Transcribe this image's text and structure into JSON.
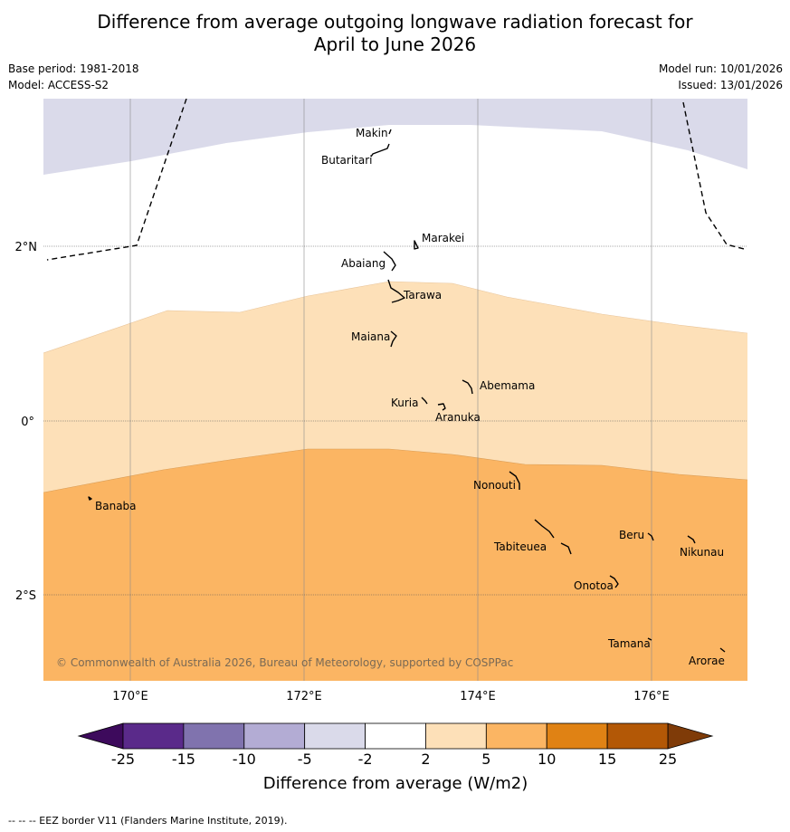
{
  "title_line1": "Difference from average outgoing longwave radiation forecast for",
  "title_line2": "April to June 2026",
  "meta": {
    "base_period": "Base period: 1981-2018",
    "model": "Model: ACCESS-S2",
    "model_run": "Model run: 10/01/2026",
    "issued": "Issued: 13/01/2026"
  },
  "axes": {
    "x_ticks": [
      "170°E",
      "172°E",
      "174°E",
      "176°E"
    ],
    "y_ticks": [
      "2°N",
      "0°",
      "2°S"
    ]
  },
  "places": [
    {
      "name": "Makin"
    },
    {
      "name": "Butaritari"
    },
    {
      "name": "Marakei"
    },
    {
      "name": "Abaiang"
    },
    {
      "name": "Tarawa"
    },
    {
      "name": "Maiana"
    },
    {
      "name": "Abemama"
    },
    {
      "name": "Kuria"
    },
    {
      "name": "Aranuka"
    },
    {
      "name": "Nonouti"
    },
    {
      "name": "Banaba"
    },
    {
      "name": "Beru"
    },
    {
      "name": "Tabiteuea"
    },
    {
      "name": "Nikunau"
    },
    {
      "name": "Onotoa"
    },
    {
      "name": "Tamana"
    },
    {
      "name": "Arorae"
    }
  ],
  "copyright": "© Commonwealth of Australia 2026, Bureau of Meteorology, supported by COSPPac",
  "colorbar": {
    "title": "Difference from average (W/m2)",
    "ticks": [
      "-25",
      "-15",
      "-10",
      "-5",
      "-2",
      "2",
      "5",
      "10",
      "15",
      "25"
    ],
    "colors": [
      "#3d0a5c",
      "#5a2a8a",
      "#8073ae",
      "#b3acd4",
      "#dadaea",
      "#ffffff",
      "#fde0b8",
      "#fbb563",
      "#e08214",
      "#b35806",
      "#7f3b08"
    ]
  },
  "footnote": "--  --  -- EEZ border V11 (Flanders Marine Institute, 2019)."
}
